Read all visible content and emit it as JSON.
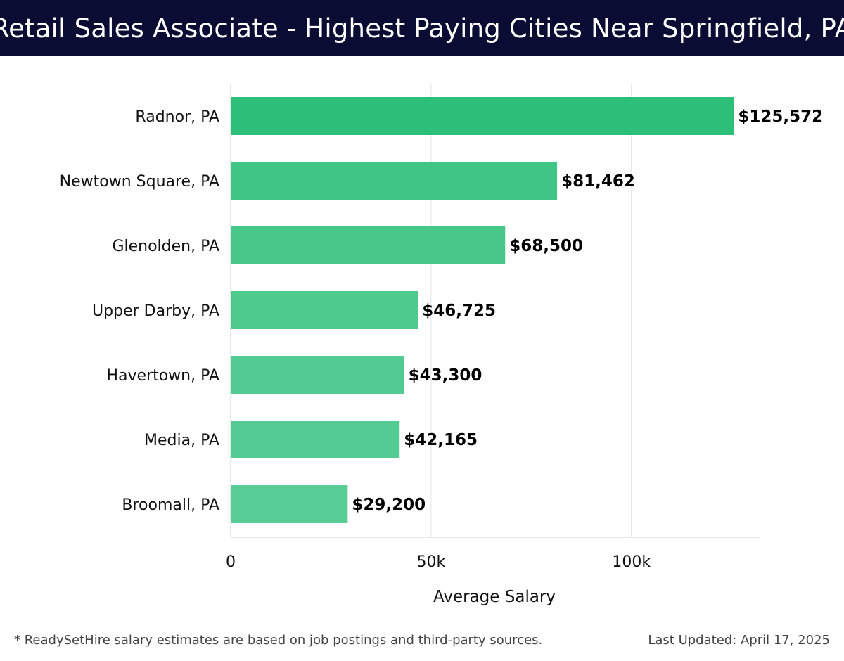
{
  "header": {
    "title": "Retail Sales Associate - Highest Paying Cities Near Springfield, PA"
  },
  "chart_data": {
    "type": "bar",
    "orientation": "horizontal",
    "title": "Retail Sales Associate - Highest Paying Cities Near Springfield, PA",
    "categories": [
      "Radnor, PA",
      "Newtown Square, PA",
      "Glenolden, PA",
      "Upper Darby, PA",
      "Havertown, PA",
      "Media, PA",
      "Broomall, PA"
    ],
    "values": [
      125572,
      81462,
      68500,
      46725,
      43300,
      42165,
      29200
    ],
    "value_labels": [
      "$125,572",
      "$81,462",
      "$68,500",
      "$46,725",
      "$43,300",
      "$42,165",
      "$29,200"
    ],
    "xlabel": "Average Salary",
    "ylabel": "",
    "xlim": [
      0,
      132000
    ],
    "xticks": [
      0,
      50000,
      100000
    ],
    "xtick_labels": [
      "0",
      "50k",
      "100k"
    ],
    "grid": true,
    "bar_colors": [
      "#2bbf78",
      "#3fc585",
      "#47c78a",
      "#4fca8f",
      "#52cb92",
      "#54cb93",
      "#58cd96"
    ]
  },
  "footer": {
    "note": "* ReadySetHire salary estimates are based on job postings and third-party sources.",
    "updated": "Last Updated: April 17, 2025"
  }
}
